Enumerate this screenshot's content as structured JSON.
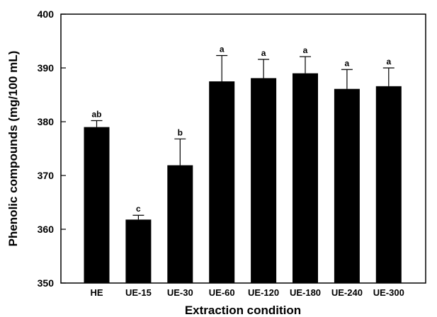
{
  "chart_data": {
    "type": "bar",
    "title": "",
    "xlabel": "Extraction condition",
    "ylabel": "Phenolic compounds (mg/100 mL)",
    "ylim": [
      350,
      400
    ],
    "yticks": [
      350,
      360,
      370,
      380,
      390,
      400
    ],
    "grid": false,
    "categories": [
      "HE",
      "UE-15",
      "UE-30",
      "UE-60",
      "UE-120",
      "UE-180",
      "UE-240",
      "UE-300"
    ],
    "values": [
      379.0,
      361.8,
      371.9,
      387.5,
      388.1,
      389.0,
      386.1,
      386.6
    ],
    "errors": [
      1.2,
      0.8,
      4.9,
      4.8,
      3.5,
      3.1,
      3.6,
      3.4
    ],
    "significance": [
      "ab",
      "c",
      "b",
      "a",
      "a",
      "a",
      "a",
      "a"
    ],
    "bar_color": "#000000"
  }
}
